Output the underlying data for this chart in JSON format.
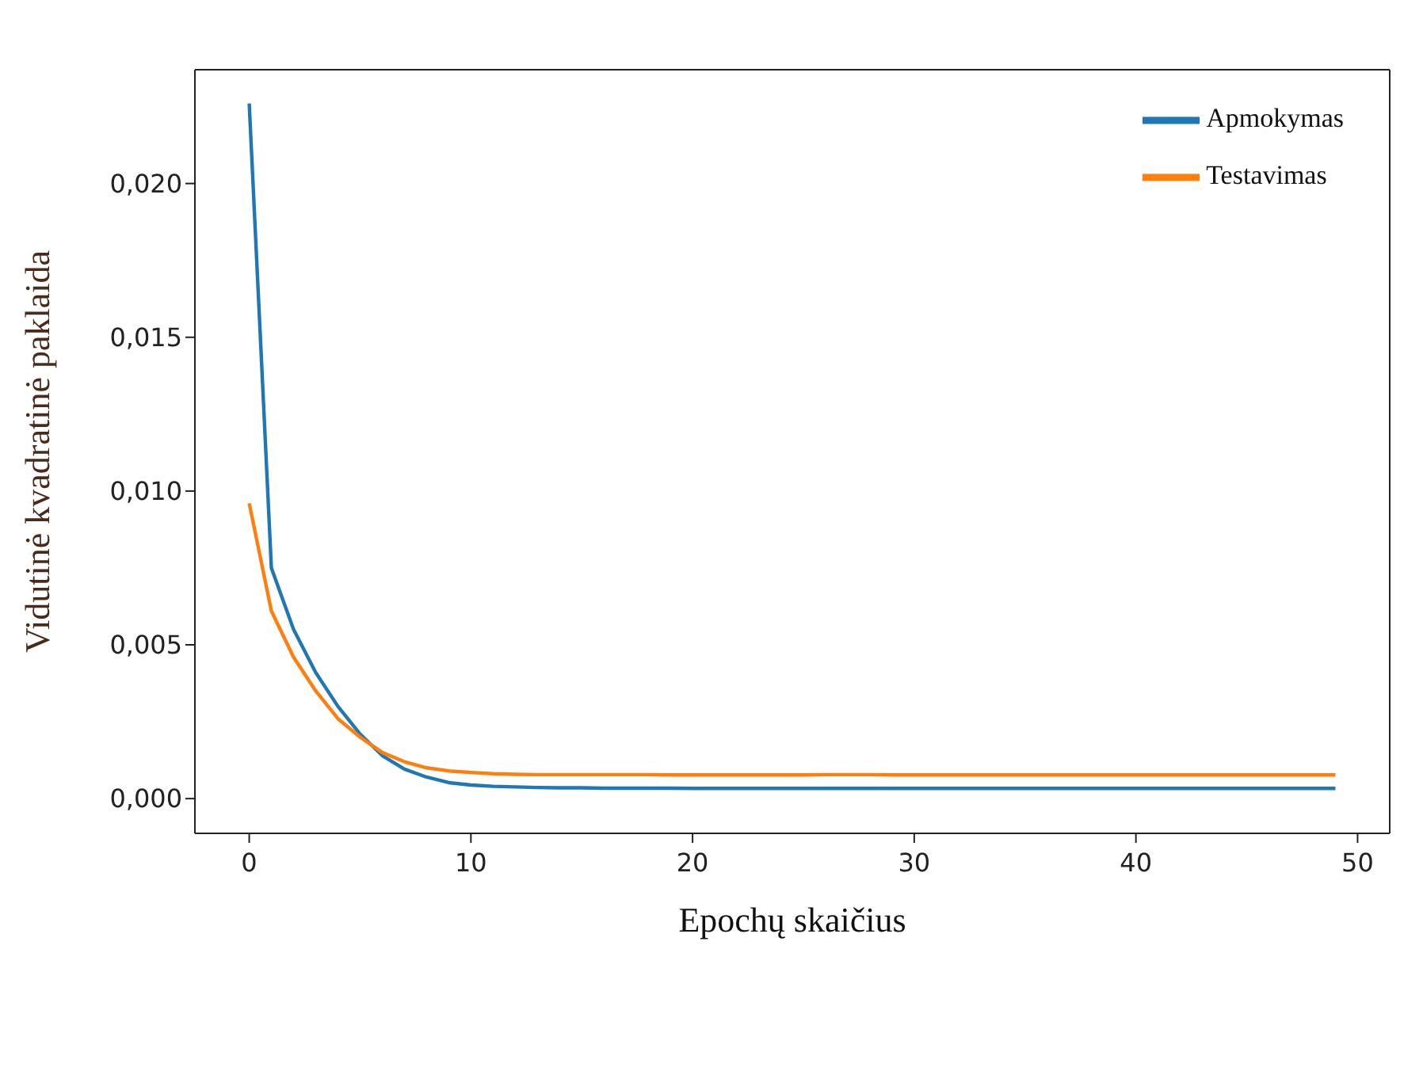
{
  "chart_data": {
    "type": "line",
    "xlabel": "Epochų skaičius",
    "ylabel": "Vidutinė kvadratinė paklaida",
    "x": [
      0,
      1,
      2,
      3,
      4,
      5,
      6,
      7,
      8,
      9,
      10,
      11,
      12,
      13,
      14,
      15,
      16,
      17,
      18,
      19,
      20,
      21,
      22,
      23,
      24,
      25,
      26,
      27,
      28,
      29,
      30,
      31,
      32,
      33,
      34,
      35,
      36,
      37,
      38,
      39,
      40,
      41,
      42,
      43,
      44,
      45,
      46,
      47,
      48,
      49
    ],
    "series": [
      {
        "name": "Apmokymas",
        "color": "#1f77b4",
        "values": [
          0.0226,
          0.0075,
          0.0055,
          0.0041,
          0.003,
          0.0021,
          0.0014,
          0.00096,
          0.0007,
          0.00052,
          0.00044,
          0.0004,
          0.00038,
          0.00036,
          0.00035,
          0.00035,
          0.00034,
          0.00034,
          0.00034,
          0.00034,
          0.00033,
          0.00033,
          0.00033,
          0.00033,
          0.00033,
          0.00033,
          0.00033,
          0.00033,
          0.00033,
          0.00033,
          0.00033,
          0.00033,
          0.00033,
          0.00033,
          0.00033,
          0.00033,
          0.00033,
          0.00033,
          0.00033,
          0.00033,
          0.00033,
          0.00033,
          0.00033,
          0.00033,
          0.00033,
          0.00033,
          0.00033,
          0.00033,
          0.00033,
          0.00033
        ]
      },
      {
        "name": "Testavimas",
        "color": "#ff7f0e",
        "values": [
          0.0096,
          0.0061,
          0.0046,
          0.0035,
          0.0026,
          0.002,
          0.0015,
          0.0012,
          0.001,
          0.0009,
          0.00085,
          0.00081,
          0.00079,
          0.00078,
          0.00078,
          0.00078,
          0.00078,
          0.00078,
          0.00078,
          0.00077,
          0.00077,
          0.00077,
          0.00077,
          0.00077,
          0.00077,
          0.00077,
          0.00078,
          0.00078,
          0.00078,
          0.00077,
          0.00077,
          0.00077,
          0.00077,
          0.00077,
          0.00077,
          0.00077,
          0.00077,
          0.00077,
          0.00077,
          0.00077,
          0.00077,
          0.00077,
          0.00077,
          0.00077,
          0.00077,
          0.00077,
          0.00077,
          0.00077,
          0.00077,
          0.00077
        ]
      }
    ],
    "xlim": [
      -2.45,
      51.45
    ],
    "xticks": [
      0,
      10,
      20,
      30,
      40,
      50
    ],
    "ylim": [
      -0.00113,
      0.0237
    ],
    "yticks": [
      {
        "value": 0,
        "label": "0,000"
      },
      {
        "value": 0.005,
        "label": "0,005"
      },
      {
        "value": 0.01,
        "label": "0,010"
      },
      {
        "value": 0.015,
        "label": "0,015"
      },
      {
        "value": 0.02,
        "label": "0,020"
      }
    ],
    "legend": "top right",
    "grid": false,
    "marker": "none",
    "line_style": "solid"
  }
}
